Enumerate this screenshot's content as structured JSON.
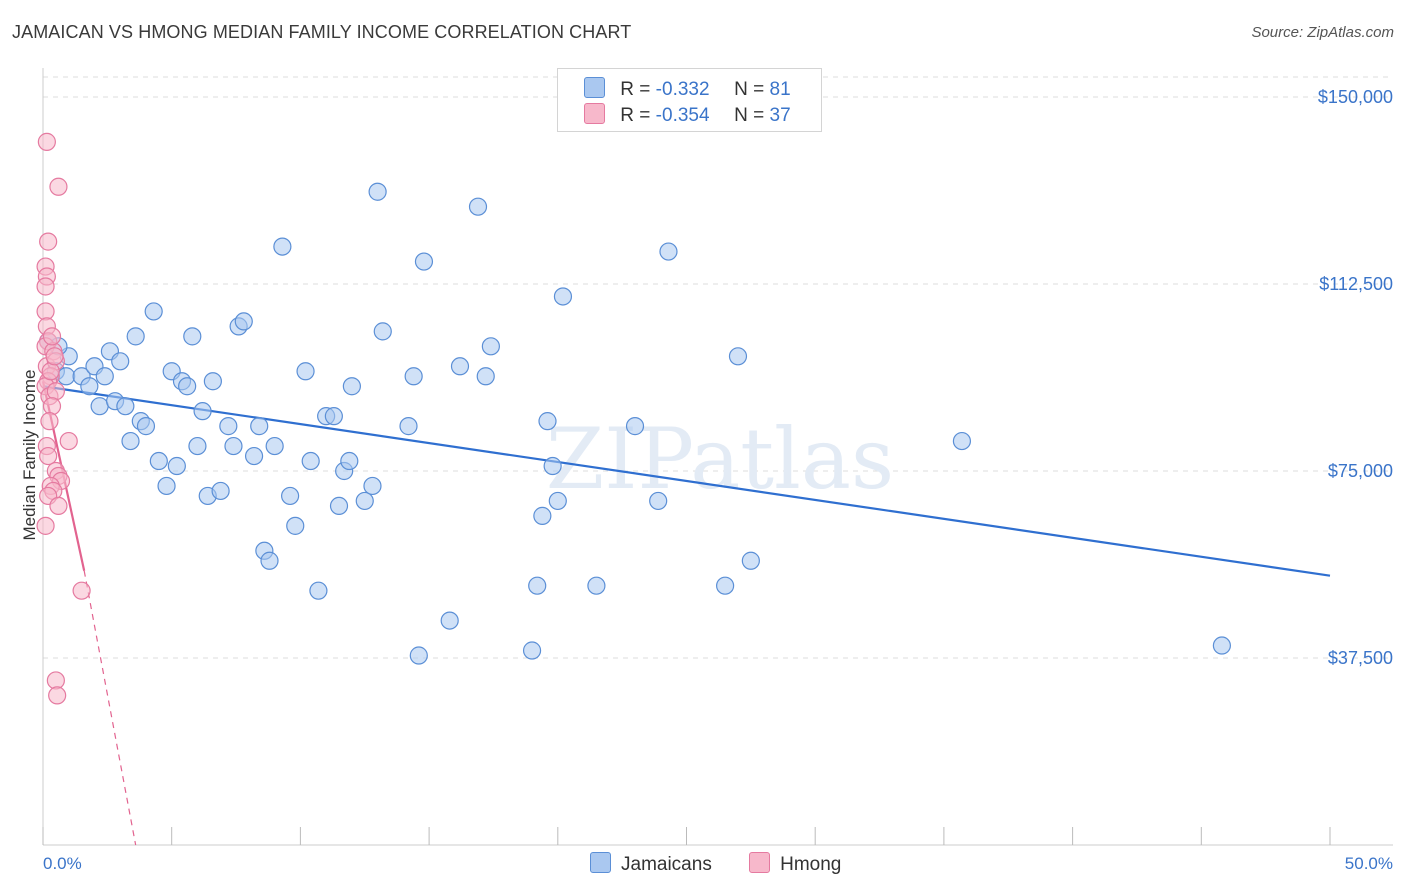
{
  "title": "JAMAICAN VS HMONG MEDIAN FAMILY INCOME CORRELATION CHART",
  "source": "Source: ZipAtlas.com",
  "watermark": "ZIPatlas",
  "colors": {
    "blue_fill": "#aac8f0",
    "blue_stroke": "#5b8fd6",
    "blue_line": "#2f6fd0",
    "pink_fill": "#f7b8cb",
    "pink_stroke": "#e57aa0",
    "pink_line": "#e2638f",
    "tick_text": "#3a74c9",
    "grid": "#dddddd"
  },
  "legend": {
    "rows": [
      {
        "series": "Jamaicans",
        "r_label": "R =",
        "r_value": "-0.332",
        "n_label": "N =",
        "n_value": "81"
      },
      {
        "series": "Hmong",
        "r_label": "R =",
        "r_value": "-0.354",
        "n_label": "N =",
        "n_value": "37"
      }
    ]
  },
  "bottom_legend": [
    "Jamaicans",
    "Hmong"
  ],
  "chart_data": {
    "type": "scatter",
    "title": "JAMAICAN VS HMONG MEDIAN FAMILY INCOME CORRELATION CHART",
    "xlabel": "",
    "ylabel": "Median Family Income",
    "xlim": [
      0,
      50
    ],
    "ylim": [
      0,
      155000
    ],
    "x_tick_labels": [
      "0.0%",
      "50.0%"
    ],
    "y_ticks": [
      37500,
      75000,
      112500,
      150000
    ],
    "y_tick_labels": [
      "$37,500",
      "$75,000",
      "$112,500",
      "$150,000"
    ],
    "grid": true,
    "series": [
      {
        "name": "Jamaicans",
        "color": "#aac8f0",
        "points": [
          [
            0.2,
            101000
          ],
          [
            0.5,
            95000
          ],
          [
            0.9,
            94000
          ],
          [
            1.0,
            98000
          ],
          [
            1.5,
            94000
          ],
          [
            1.8,
            92000
          ],
          [
            2.0,
            96000
          ],
          [
            2.2,
            88000
          ],
          [
            2.4,
            94000
          ],
          [
            2.6,
            99000
          ],
          [
            2.8,
            89000
          ],
          [
            3.0,
            97000
          ],
          [
            3.2,
            88000
          ],
          [
            3.4,
            81000
          ],
          [
            3.6,
            102000
          ],
          [
            3.8,
            85000
          ],
          [
            4.0,
            84000
          ],
          [
            4.3,
            107000
          ],
          [
            4.5,
            77000
          ],
          [
            4.8,
            72000
          ],
          [
            5.0,
            95000
          ],
          [
            5.2,
            76000
          ],
          [
            5.4,
            93000
          ],
          [
            5.6,
            92000
          ],
          [
            5.8,
            102000
          ],
          [
            6.0,
            80000
          ],
          [
            6.2,
            87000
          ],
          [
            6.4,
            70000
          ],
          [
            6.6,
            93000
          ],
          [
            6.9,
            71000
          ],
          [
            7.2,
            84000
          ],
          [
            7.4,
            80000
          ],
          [
            7.6,
            104000
          ],
          [
            7.8,
            105000
          ],
          [
            8.2,
            78000
          ],
          [
            8.4,
            84000
          ],
          [
            8.6,
            59000
          ],
          [
            8.8,
            57000
          ],
          [
            9.0,
            80000
          ],
          [
            9.3,
            120000
          ],
          [
            9.6,
            70000
          ],
          [
            9.8,
            64000
          ],
          [
            10.2,
            95000
          ],
          [
            10.4,
            77000
          ],
          [
            10.7,
            51000
          ],
          [
            11.0,
            86000
          ],
          [
            11.3,
            86000
          ],
          [
            11.5,
            68000
          ],
          [
            11.7,
            75000
          ],
          [
            11.9,
            77000
          ],
          [
            12.0,
            92000
          ],
          [
            12.5,
            69000
          ],
          [
            12.8,
            72000
          ],
          [
            13.0,
            131000
          ],
          [
            13.2,
            103000
          ],
          [
            14.2,
            84000
          ],
          [
            14.4,
            94000
          ],
          [
            14.6,
            38000
          ],
          [
            14.8,
            117000
          ],
          [
            15.8,
            45000
          ],
          [
            16.2,
            96000
          ],
          [
            16.9,
            128000
          ],
          [
            17.2,
            94000
          ],
          [
            17.4,
            100000
          ],
          [
            19.0,
            39000
          ],
          [
            19.2,
            52000
          ],
          [
            19.4,
            66000
          ],
          [
            19.6,
            85000
          ],
          [
            19.8,
            76000
          ],
          [
            20.0,
            69000
          ],
          [
            20.2,
            110000
          ],
          [
            21.5,
            52000
          ],
          [
            23.0,
            84000
          ],
          [
            23.9,
            69000
          ],
          [
            24.3,
            119000
          ],
          [
            26.5,
            52000
          ],
          [
            27.0,
            98000
          ],
          [
            27.5,
            57000
          ],
          [
            35.7,
            81000
          ],
          [
            45.8,
            40000
          ],
          [
            0.6,
            100000
          ]
        ],
        "trend": {
          "x": [
            0,
            50
          ],
          "y": [
            92000,
            54000
          ]
        }
      },
      {
        "name": "Hmong",
        "color": "#f7b8cb",
        "points": [
          [
            0.15,
            141000
          ],
          [
            0.6,
            132000
          ],
          [
            0.2,
            121000
          ],
          [
            0.1,
            116000
          ],
          [
            0.15,
            114000
          ],
          [
            0.1,
            112000
          ],
          [
            0.1,
            107000
          ],
          [
            0.15,
            104000
          ],
          [
            0.2,
            101000
          ],
          [
            0.1,
            100000
          ],
          [
            0.4,
            99000
          ],
          [
            0.15,
            96000
          ],
          [
            0.5,
            97000
          ],
          [
            0.3,
            94000
          ],
          [
            0.2,
            93000
          ],
          [
            0.1,
            92000
          ],
          [
            0.25,
            90000
          ],
          [
            0.5,
            91000
          ],
          [
            0.35,
            88000
          ],
          [
            1.0,
            81000
          ],
          [
            0.15,
            80000
          ],
          [
            0.2,
            78000
          ],
          [
            0.5,
            75000
          ],
          [
            0.6,
            74000
          ],
          [
            0.7,
            73000
          ],
          [
            0.3,
            72000
          ],
          [
            0.4,
            71000
          ],
          [
            0.2,
            70000
          ],
          [
            0.6,
            68000
          ],
          [
            0.1,
            64000
          ],
          [
            1.5,
            51000
          ],
          [
            0.5,
            33000
          ],
          [
            0.55,
            30000
          ],
          [
            0.3,
            95000
          ],
          [
            0.25,
            85000
          ],
          [
            0.35,
            102000
          ],
          [
            0.45,
            98000
          ]
        ],
        "trend": {
          "x": [
            0,
            1.6
          ],
          "y": [
            93000,
            55000
          ]
        },
        "trend_extension": {
          "x": [
            1.6,
            3.6
          ],
          "y": [
            55000,
            0
          ]
        }
      }
    ]
  }
}
